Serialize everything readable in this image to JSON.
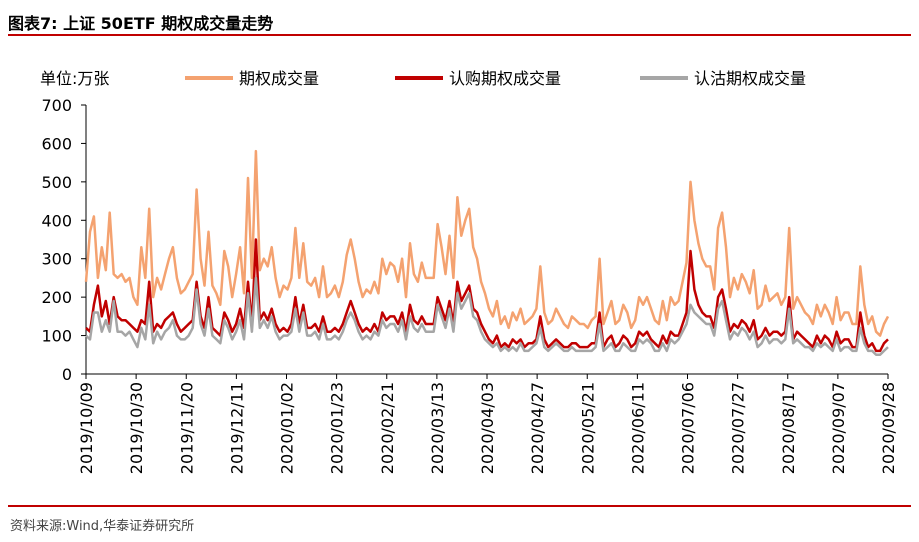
{
  "header": {
    "title": "图表7:  上证 50ETF 期权成交量走势"
  },
  "footer": {
    "source": "资料来源:Wind,华泰证券研究所"
  },
  "chart_data": {
    "type": "line",
    "unit_label": "单位:万张",
    "ylim": [
      0,
      700
    ],
    "yticks": [
      0,
      100,
      200,
      300,
      400,
      500,
      600,
      700
    ],
    "xtick_labels": [
      "2019/10/09",
      "2019/10/30",
      "2019/11/20",
      "2019/12/11",
      "2020/01/02",
      "2020/01/23",
      "2020/02/21",
      "2020/03/13",
      "2020/04/03",
      "2020/04/27",
      "2020/05/21",
      "2020/06/11",
      "2020/07/06",
      "2020/07/27",
      "2020/08/17",
      "2020/09/07",
      "2020/09/28"
    ],
    "series": [
      {
        "name": "期权成交量",
        "color": "#f4a270",
        "values": [
          240,
          370,
          410,
          250,
          330,
          270,
          420,
          260,
          250,
          260,
          240,
          250,
          200,
          180,
          330,
          250,
          430,
          200,
          250,
          220,
          260,
          300,
          330,
          250,
          210,
          220,
          240,
          260,
          480,
          300,
          230,
          370,
          230,
          210,
          180,
          320,
          280,
          200,
          260,
          330,
          210,
          510,
          250,
          580,
          270,
          300,
          280,
          330,
          250,
          200,
          230,
          220,
          250,
          380,
          250,
          340,
          240,
          230,
          250,
          200,
          280,
          200,
          210,
          230,
          200,
          240,
          310,
          350,
          300,
          240,
          200,
          220,
          210,
          240,
          210,
          300,
          260,
          290,
          280,
          240,
          300,
          200,
          340,
          260,
          240,
          290,
          250,
          250,
          250,
          390,
          330,
          260,
          360,
          250,
          460,
          360,
          400,
          430,
          330,
          300,
          240,
          210,
          170,
          150,
          190,
          130,
          150,
          120,
          160,
          140,
          170,
          130,
          140,
          150,
          170,
          280,
          160,
          130,
          140,
          170,
          150,
          130,
          120,
          150,
          140,
          130,
          130,
          120,
          140,
          150,
          300,
          130,
          160,
          190,
          130,
          140,
          180,
          160,
          120,
          140,
          200,
          180,
          200,
          170,
          140,
          130,
          190,
          140,
          200,
          180,
          190,
          240,
          290,
          500,
          400,
          340,
          300,
          280,
          280,
          220,
          380,
          420,
          330,
          200,
          250,
          220,
          260,
          240,
          210,
          270,
          170,
          180,
          230,
          190,
          200,
          210,
          180,
          200,
          380,
          170,
          200,
          180,
          160,
          150,
          130,
          180,
          150,
          180,
          160,
          130,
          200,
          140,
          160,
          160,
          130,
          130,
          280,
          180,
          130,
          150,
          110,
          100,
          130,
          150
        ]
      },
      {
        "name": "认购期权成交量",
        "color": "#c00000",
        "values": [
          120,
          110,
          180,
          230,
          150,
          190,
          130,
          200,
          150,
          140,
          140,
          130,
          120,
          110,
          140,
          130,
          240,
          110,
          130,
          120,
          140,
          150,
          160,
          130,
          110,
          120,
          130,
          140,
          240,
          150,
          120,
          200,
          120,
          110,
          100,
          160,
          140,
          110,
          130,
          170,
          120,
          240,
          130,
          350,
          140,
          160,
          140,
          170,
          130,
          110,
          120,
          110,
          130,
          200,
          130,
          180,
          120,
          120,
          130,
          110,
          150,
          110,
          110,
          120,
          110,
          130,
          160,
          190,
          160,
          130,
          110,
          120,
          110,
          130,
          110,
          160,
          140,
          150,
          150,
          130,
          160,
          110,
          180,
          140,
          130,
          150,
          130,
          130,
          130,
          200,
          170,
          140,
          190,
          130,
          240,
          190,
          210,
          230,
          170,
          160,
          130,
          110,
          90,
          80,
          100,
          70,
          80,
          70,
          90,
          80,
          90,
          70,
          80,
          80,
          90,
          150,
          90,
          70,
          80,
          90,
          80,
          70,
          70,
          80,
          80,
          70,
          70,
          70,
          80,
          80,
          160,
          70,
          90,
          100,
          70,
          80,
          100,
          90,
          70,
          80,
          110,
          100,
          110,
          90,
          80,
          70,
          100,
          80,
          110,
          100,
          100,
          130,
          160,
          320,
          220,
          180,
          160,
          150,
          150,
          120,
          200,
          220,
          170,
          110,
          130,
          120,
          140,
          130,
          110,
          140,
          90,
          100,
          120,
          100,
          110,
          110,
          100,
          110,
          200,
          90,
          110,
          100,
          90,
          80,
          70,
          100,
          80,
          100,
          90,
          70,
          110,
          80,
          90,
          90,
          70,
          70,
          160,
          100,
          70,
          80,
          60,
          60,
          80,
          90
        ]
      },
      {
        "name": "认沽期权成交量",
        "color": "#a6a6a6",
        "values": [
          100,
          90,
          160,
          160,
          110,
          140,
          110,
          190,
          110,
          110,
          100,
          110,
          90,
          70,
          120,
          90,
          180,
          80,
          110,
          90,
          110,
          120,
          140,
          100,
          90,
          90,
          100,
          120,
          220,
          130,
          100,
          170,
          100,
          90,
          80,
          140,
          120,
          90,
          110,
          140,
          90,
          210,
          110,
          250,
          120,
          140,
          120,
          150,
          110,
          90,
          100,
          100,
          110,
          170,
          110,
          160,
          100,
          100,
          110,
          90,
          130,
          90,
          90,
          100,
          90,
          110,
          140,
          160,
          140,
          110,
          90,
          100,
          90,
          110,
          100,
          140,
          120,
          130,
          130,
          110,
          140,
          90,
          150,
          120,
          110,
          130,
          110,
          110,
          110,
          180,
          150,
          120,
          170,
          110,
          210,
          170,
          190,
          210,
          150,
          140,
          110,
          90,
          80,
          70,
          80,
          60,
          70,
          60,
          70,
          60,
          80,
          60,
          60,
          70,
          80,
          120,
          70,
          60,
          70,
          80,
          70,
          60,
          60,
          70,
          60,
          60,
          60,
          60,
          60,
          70,
          130,
          60,
          70,
          80,
          60,
          60,
          80,
          70,
          60,
          60,
          90,
          80,
          90,
          80,
          60,
          60,
          80,
          60,
          90,
          80,
          90,
          110,
          130,
          180,
          160,
          150,
          140,
          130,
          130,
          100,
          170,
          190,
          140,
          90,
          110,
          100,
          120,
          110,
          90,
          110,
          70,
          80,
          100,
          80,
          90,
          90,
          80,
          90,
          170,
          80,
          90,
          80,
          70,
          70,
          60,
          80,
          70,
          80,
          70,
          60,
          90,
          60,
          70,
          70,
          60,
          60,
          120,
          80,
          60,
          60,
          50,
          50,
          60,
          70
        ]
      }
    ]
  }
}
